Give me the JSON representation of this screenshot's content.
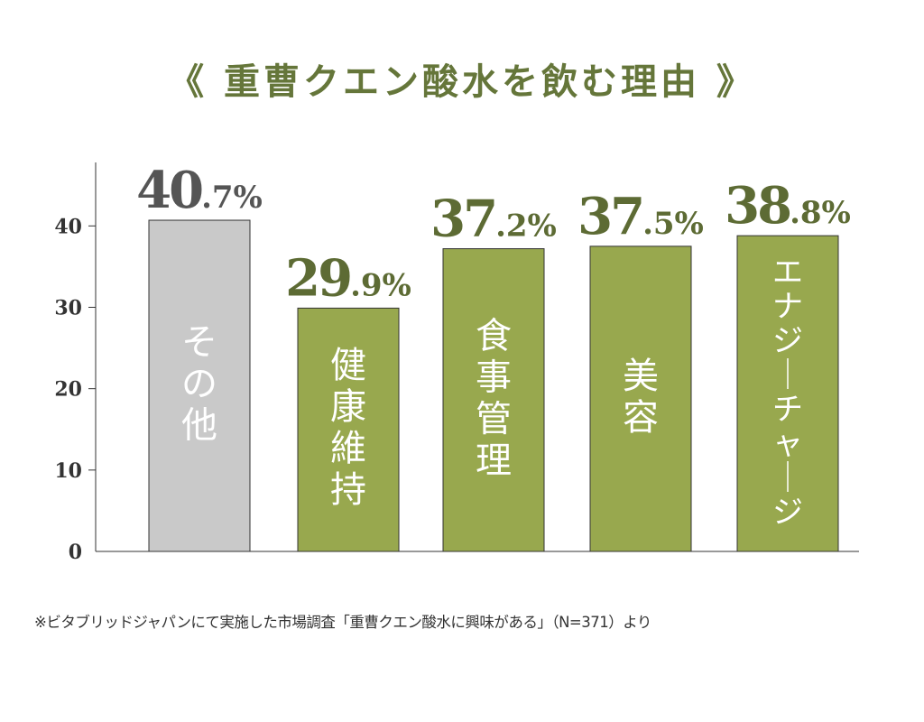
{
  "chart_data": {
    "type": "bar",
    "title": "《 重曹クエン酸水を飲む理由 》",
    "categories": [
      "その他",
      "健康維持",
      "食事管理",
      "美容",
      "エナジーチャージ"
    ],
    "values": [
      40.7,
      29.9,
      37.2,
      37.5,
      38.8
    ],
    "value_labels": [
      {
        "int": "40",
        "dec": ".7%"
      },
      {
        "int": "29",
        "dec": ".9%"
      },
      {
        "int": "37",
        "dec": ".2%"
      },
      {
        "int": "37",
        "dec": ".5%"
      },
      {
        "int": "38",
        "dec": ".8%"
      }
    ],
    "yticks": [
      0,
      10,
      20,
      30,
      40
    ],
    "ylim": [
      0,
      47.8
    ],
    "xlabel": "",
    "ylabel": "",
    "grid": false,
    "colors": {
      "other": "#c9c9c9",
      "main": "#98a84e",
      "value_other": "#555555",
      "value_main": "#5d6b34",
      "title": "#65763a"
    },
    "note": "※ビタブリッドジャパンにて実施した市場調査「重曹クエン酸水に興味がある」（N=371）より"
  }
}
